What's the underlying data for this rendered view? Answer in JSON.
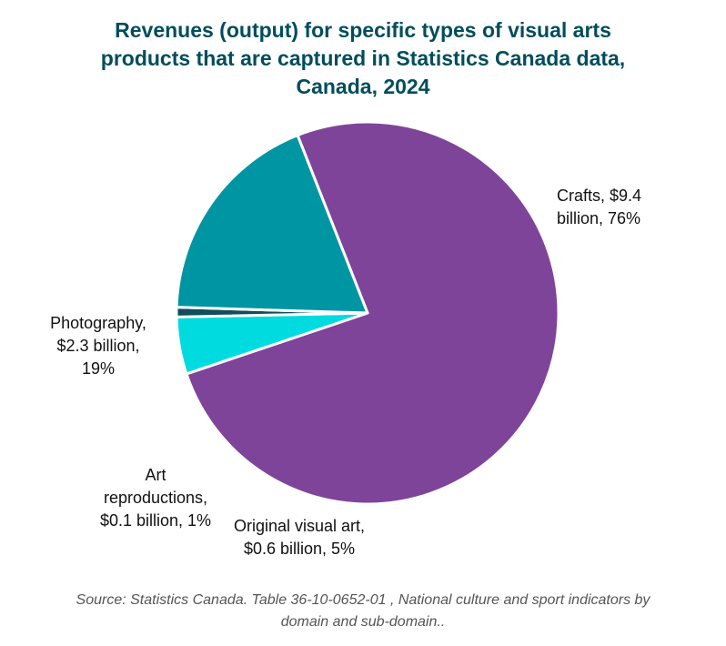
{
  "title_lines": [
    "Revenues (output) for specific types of visual arts",
    "products that are captured in Statistics Canada data,",
    "Canada, 2024"
  ],
  "chart_data": {
    "type": "pie",
    "title": "Revenues (output) for specific types of visual arts products that are captured in Statistics Canada data, Canada, 2024",
    "categories": [
      "Crafts",
      "Original visual art",
      "Art reproductions",
      "Photography"
    ],
    "values": [
      9.4,
      0.6,
      0.1,
      2.3
    ],
    "percents": [
      76,
      5,
      1,
      19
    ],
    "unit": "$ billion",
    "colors": [
      "#7e4499",
      "#00dbe0",
      "#114d5c",
      "#0095a3"
    ],
    "labels": [
      {
        "lines": [
          "Crafts, $9.4",
          "billion, 76%"
        ]
      },
      {
        "lines": [
          "Original visual art,",
          "$0.6 billion, 5%"
        ]
      },
      {
        "lines": [
          "Art",
          "reproductions,",
          "$0.1 billion, 1%"
        ]
      },
      {
        "lines": [
          "Photography,",
          "$2.3 billion,",
          "19%"
        ]
      }
    ],
    "legend": "none"
  },
  "source_lines": [
    "Source: Statistics Canada. Table 36-10-0652-01 , National culture and sport indicators by",
    "domain and sub-domain.."
  ]
}
